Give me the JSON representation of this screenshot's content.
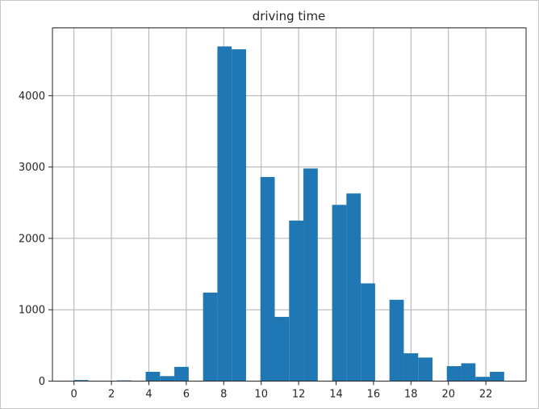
{
  "chart_data": {
    "type": "bar",
    "title": "driving time",
    "xlabel": "",
    "ylabel": "",
    "xlim": [
      -1.15,
      24.15
    ],
    "ylim": [
      0,
      4950
    ],
    "bin_width": 0.766,
    "grid": true,
    "bar_color": "#1f77b4",
    "x_ticks": [
      0,
      2,
      4,
      6,
      8,
      10,
      12,
      14,
      16,
      18,
      20,
      22
    ],
    "y_ticks": [
      0,
      1000,
      2000,
      3000,
      4000
    ],
    "bins": [
      {
        "start": 0.0,
        "value": 15
      },
      {
        "start": 0.766,
        "value": 0
      },
      {
        "start": 1.532,
        "value": 0
      },
      {
        "start": 2.298,
        "value": 10
      },
      {
        "start": 3.064,
        "value": 0
      },
      {
        "start": 3.83,
        "value": 130
      },
      {
        "start": 4.596,
        "value": 70
      },
      {
        "start": 5.362,
        "value": 200
      },
      {
        "start": 6.128,
        "value": 0
      },
      {
        "start": 6.894,
        "value": 1240
      },
      {
        "start": 7.66,
        "value": 4690
      },
      {
        "start": 8.426,
        "value": 4650
      },
      {
        "start": 9.192,
        "value": 0
      },
      {
        "start": 9.958,
        "value": 2860
      },
      {
        "start": 10.724,
        "value": 900
      },
      {
        "start": 11.49,
        "value": 2250
      },
      {
        "start": 12.256,
        "value": 2980
      },
      {
        "start": 13.022,
        "value": 0
      },
      {
        "start": 13.788,
        "value": 2470
      },
      {
        "start": 14.554,
        "value": 2630
      },
      {
        "start": 15.32,
        "value": 1370
      },
      {
        "start": 16.086,
        "value": 0
      },
      {
        "start": 16.852,
        "value": 1140
      },
      {
        "start": 17.618,
        "value": 390
      },
      {
        "start": 18.384,
        "value": 330
      },
      {
        "start": 19.15,
        "value": 0
      },
      {
        "start": 19.916,
        "value": 210
      },
      {
        "start": 20.682,
        "value": 250
      },
      {
        "start": 21.448,
        "value": 60
      },
      {
        "start": 22.214,
        "value": 130
      }
    ]
  }
}
